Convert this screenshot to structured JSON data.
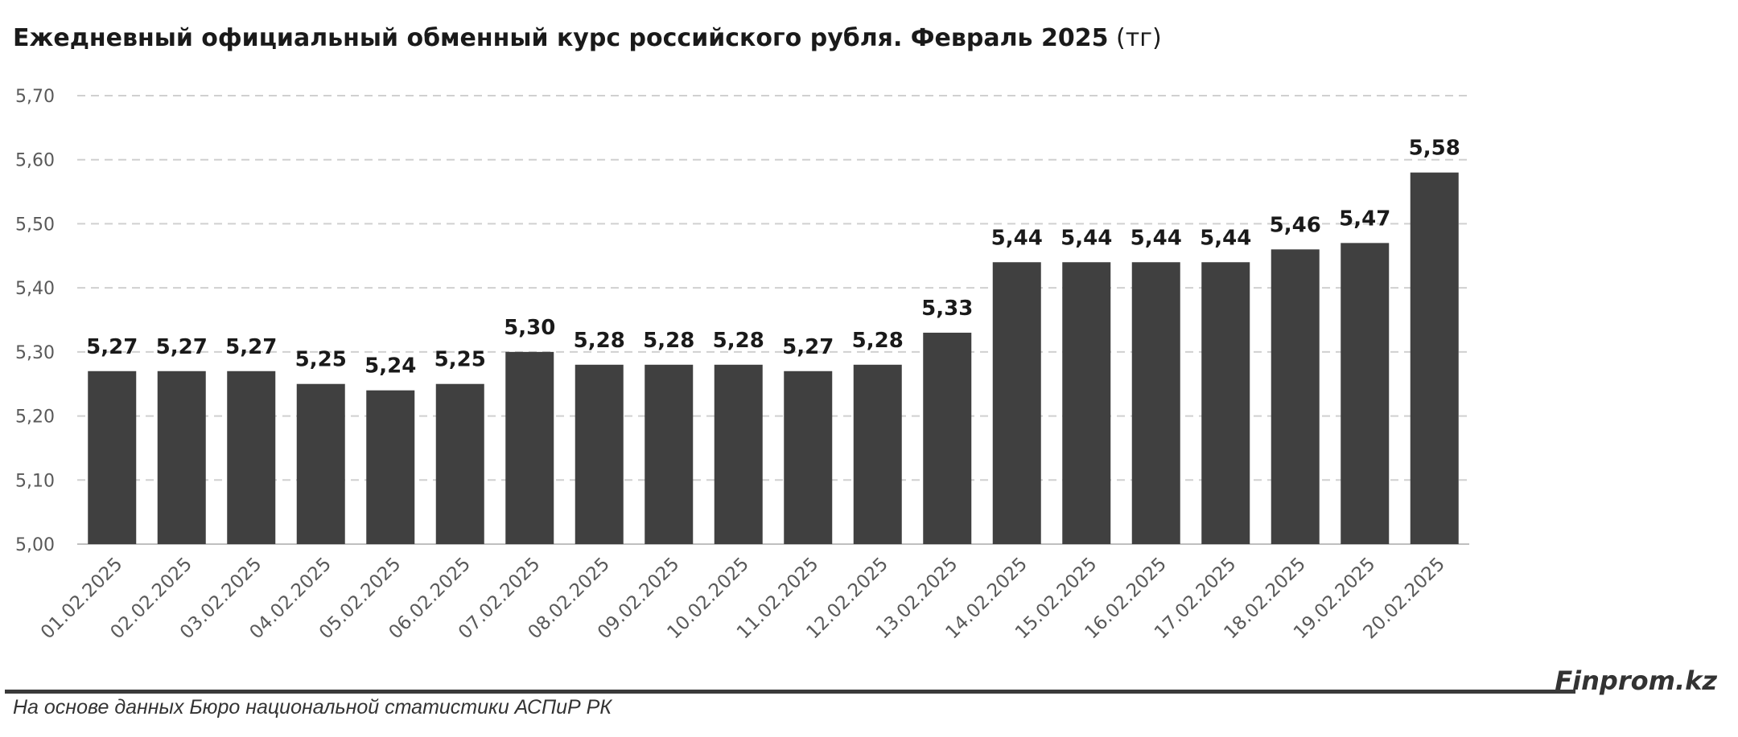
{
  "title": {
    "main": "Ежедневный официальный обменный курс российского рубля. Февраль 2025",
    "unit": "(тг)"
  },
  "footer": {
    "source": "На основе данных Бюро национальной статистики АСПиР РК",
    "brand": "Finprom.kz"
  },
  "colors": {
    "bar": "#404040",
    "grid": "#d0d0d0",
    "axis": "#bfbfbf",
    "rule": "#3a3a3a"
  },
  "chart_data": {
    "type": "bar",
    "title": "Ежедневный официальный обменный курс российского рубля. Февраль 2025 (тг)",
    "xlabel": "",
    "ylabel": "",
    "ylim": [
      5.0,
      5.7
    ],
    "yticks": [
      "5,00",
      "5,10",
      "5,20",
      "5,30",
      "5,40",
      "5,50",
      "5,60",
      "5,70"
    ],
    "grid": true,
    "legend": "none",
    "categories": [
      "01.02.2025",
      "02.02.2025",
      "03.02.2025",
      "04.02.2025",
      "05.02.2025",
      "06.02.2025",
      "07.02.2025",
      "08.02.2025",
      "09.02.2025",
      "10.02.2025",
      "11.02.2025",
      "12.02.2025",
      "13.02.2025",
      "14.02.2025",
      "15.02.2025",
      "16.02.2025",
      "17.02.2025",
      "18.02.2025",
      "19.02.2025",
      "20.02.2025"
    ],
    "values": [
      5.27,
      5.27,
      5.27,
      5.25,
      5.24,
      5.25,
      5.3,
      5.28,
      5.28,
      5.28,
      5.27,
      5.28,
      5.33,
      5.44,
      5.44,
      5.44,
      5.44,
      5.46,
      5.47,
      5.58
    ],
    "value_labels": [
      "5,27",
      "5,27",
      "5,27",
      "5,25",
      "5,24",
      "5,25",
      "5,30",
      "5,28",
      "5,28",
      "5,28",
      "5,27",
      "5,28",
      "5,33",
      "5,44",
      "5,44",
      "5,44",
      "5,44",
      "5,46",
      "5,47",
      "5,58"
    ]
  }
}
